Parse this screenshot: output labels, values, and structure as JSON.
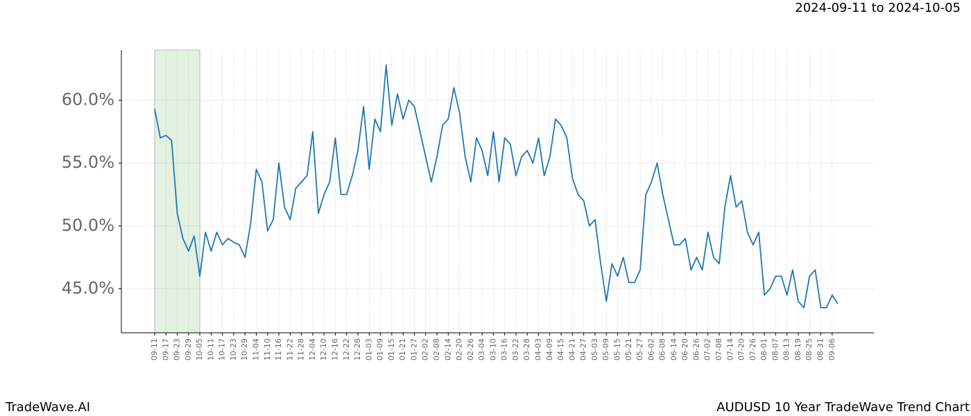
{
  "header": {
    "date_range": "2024-09-11 to 2024-10-05"
  },
  "footer": {
    "brand": "TradeWave.AI",
    "caption": "AUDUSD 10 Year TradeWave Trend Chart"
  },
  "chart_data": {
    "type": "line",
    "x": [
      "09-11",
      "09-14",
      "09-17",
      "09-20",
      "09-23",
      "09-26",
      "09-29",
      "10-02",
      "10-05",
      "10-08",
      "10-11",
      "10-14",
      "10-17",
      "10-20",
      "10-23",
      "10-26",
      "10-29",
      "11-01",
      "11-04",
      "11-07",
      "11-10",
      "11-13",
      "11-16",
      "11-19",
      "11-22",
      "11-25",
      "11-28",
      "12-01",
      "12-04",
      "12-07",
      "12-10",
      "12-13",
      "12-16",
      "12-19",
      "12-22",
      "12-25",
      "12-28",
      "12-31",
      "01-03",
      "01-06",
      "01-09",
      "01-12",
      "01-15",
      "01-18",
      "01-21",
      "01-24",
      "01-27",
      "01-30",
      "02-02",
      "02-05",
      "02-08",
      "02-11",
      "02-14",
      "02-17",
      "02-20",
      "02-23",
      "02-26",
      "03-01",
      "03-04",
      "03-07",
      "03-10",
      "03-13",
      "03-16",
      "03-19",
      "03-22",
      "03-25",
      "03-28",
      "03-31",
      "04-03",
      "04-06",
      "04-09",
      "04-12",
      "04-15",
      "04-18",
      "04-21",
      "04-24",
      "04-27",
      "04-30",
      "05-03",
      "05-06",
      "05-09",
      "05-12",
      "05-15",
      "05-18",
      "05-21",
      "05-24",
      "05-27",
      "05-30",
      "06-02",
      "06-05",
      "06-08",
      "06-11",
      "06-14",
      "06-17",
      "06-20",
      "06-23",
      "06-26",
      "06-29",
      "07-02",
      "07-05",
      "07-08",
      "07-11",
      "07-14",
      "07-17",
      "07-20",
      "07-23",
      "07-26",
      "07-29",
      "08-01",
      "08-04",
      "08-07",
      "08-10",
      "08-13",
      "08-16",
      "08-19",
      "08-22",
      "08-25",
      "08-28",
      "08-31",
      "09-03",
      "09-06",
      "09-09"
    ],
    "values": [
      59.3,
      57.0,
      57.2,
      56.8,
      51.0,
      49.0,
      48.0,
      49.2,
      46.0,
      49.5,
      48.0,
      49.5,
      48.5,
      49.0,
      48.7,
      48.5,
      47.5,
      50.2,
      54.5,
      53.5,
      49.6,
      50.5,
      55.0,
      51.5,
      50.5,
      53.0,
      53.5,
      54.0,
      57.5,
      51.0,
      52.5,
      53.5,
      57.0,
      52.5,
      52.5,
      54.0,
      56.0,
      59.5,
      54.5,
      58.5,
      57.5,
      62.8,
      58.0,
      60.5,
      58.5,
      60.0,
      59.5,
      57.5,
      55.5,
      53.5,
      55.5,
      58.0,
      58.5,
      61.0,
      59.0,
      55.5,
      53.5,
      57.0,
      56.0,
      54.0,
      57.5,
      53.5,
      57.0,
      56.5,
      54.0,
      55.5,
      56.0,
      55.0,
      57.0,
      54.0,
      55.5,
      58.5,
      58.0,
      57.0,
      53.8,
      52.5,
      52.0,
      50.0,
      50.5,
      47.0,
      44.0,
      47.0,
      46.0,
      47.5,
      45.5,
      45.5,
      46.5,
      52.5,
      53.5,
      55.0,
      52.5,
      50.5,
      48.5,
      48.5,
      49.0,
      46.5,
      47.5,
      46.5,
      49.5,
      47.5,
      47.0,
      51.5,
      54.0,
      51.5,
      52.0,
      49.5,
      48.5,
      49.5,
      44.5,
      45.0,
      46.0,
      46.0,
      44.5,
      46.5,
      44.0,
      43.5,
      46.0,
      46.5,
      43.5,
      43.5,
      44.5,
      43.8
    ],
    "color": "#1f77b4",
    "highlight": [
      "09-11",
      "10-05"
    ],
    "highlight_color": "#e3f1e1",
    "ylim": [
      41.5,
      64
    ],
    "yticks": [
      {
        "value": 45,
        "label": "45.0%"
      },
      {
        "value": 50,
        "label": "50.0%"
      },
      {
        "value": 55,
        "label": "55.0%"
      },
      {
        "value": 60,
        "label": "60.0%"
      }
    ],
    "xticks": [
      "09-11",
      "09-17",
      "09-23",
      "09-29",
      "10-05",
      "10-11",
      "10-17",
      "10-23",
      "10-29",
      "11-04",
      "11-10",
      "11-16",
      "11-22",
      "11-28",
      "12-04",
      "12-10",
      "12-16",
      "12-22",
      "12-28",
      "01-03",
      "01-09",
      "01-15",
      "01-21",
      "01-27",
      "02-02",
      "02-08",
      "02-14",
      "02-20",
      "02-26",
      "03-04",
      "03-10",
      "03-16",
      "03-22",
      "03-28",
      "04-03",
      "04-09",
      "04-15",
      "04-21",
      "04-27",
      "05-03",
      "05-09",
      "05-15",
      "05-21",
      "05-27",
      "06-02",
      "06-08",
      "06-14",
      "06-20",
      "06-26",
      "07-02",
      "07-08",
      "07-14",
      "07-20",
      "07-26",
      "08-01",
      "08-07",
      "08-13",
      "08-19",
      "08-25",
      "08-31",
      "09-06"
    ],
    "grid": true
  }
}
